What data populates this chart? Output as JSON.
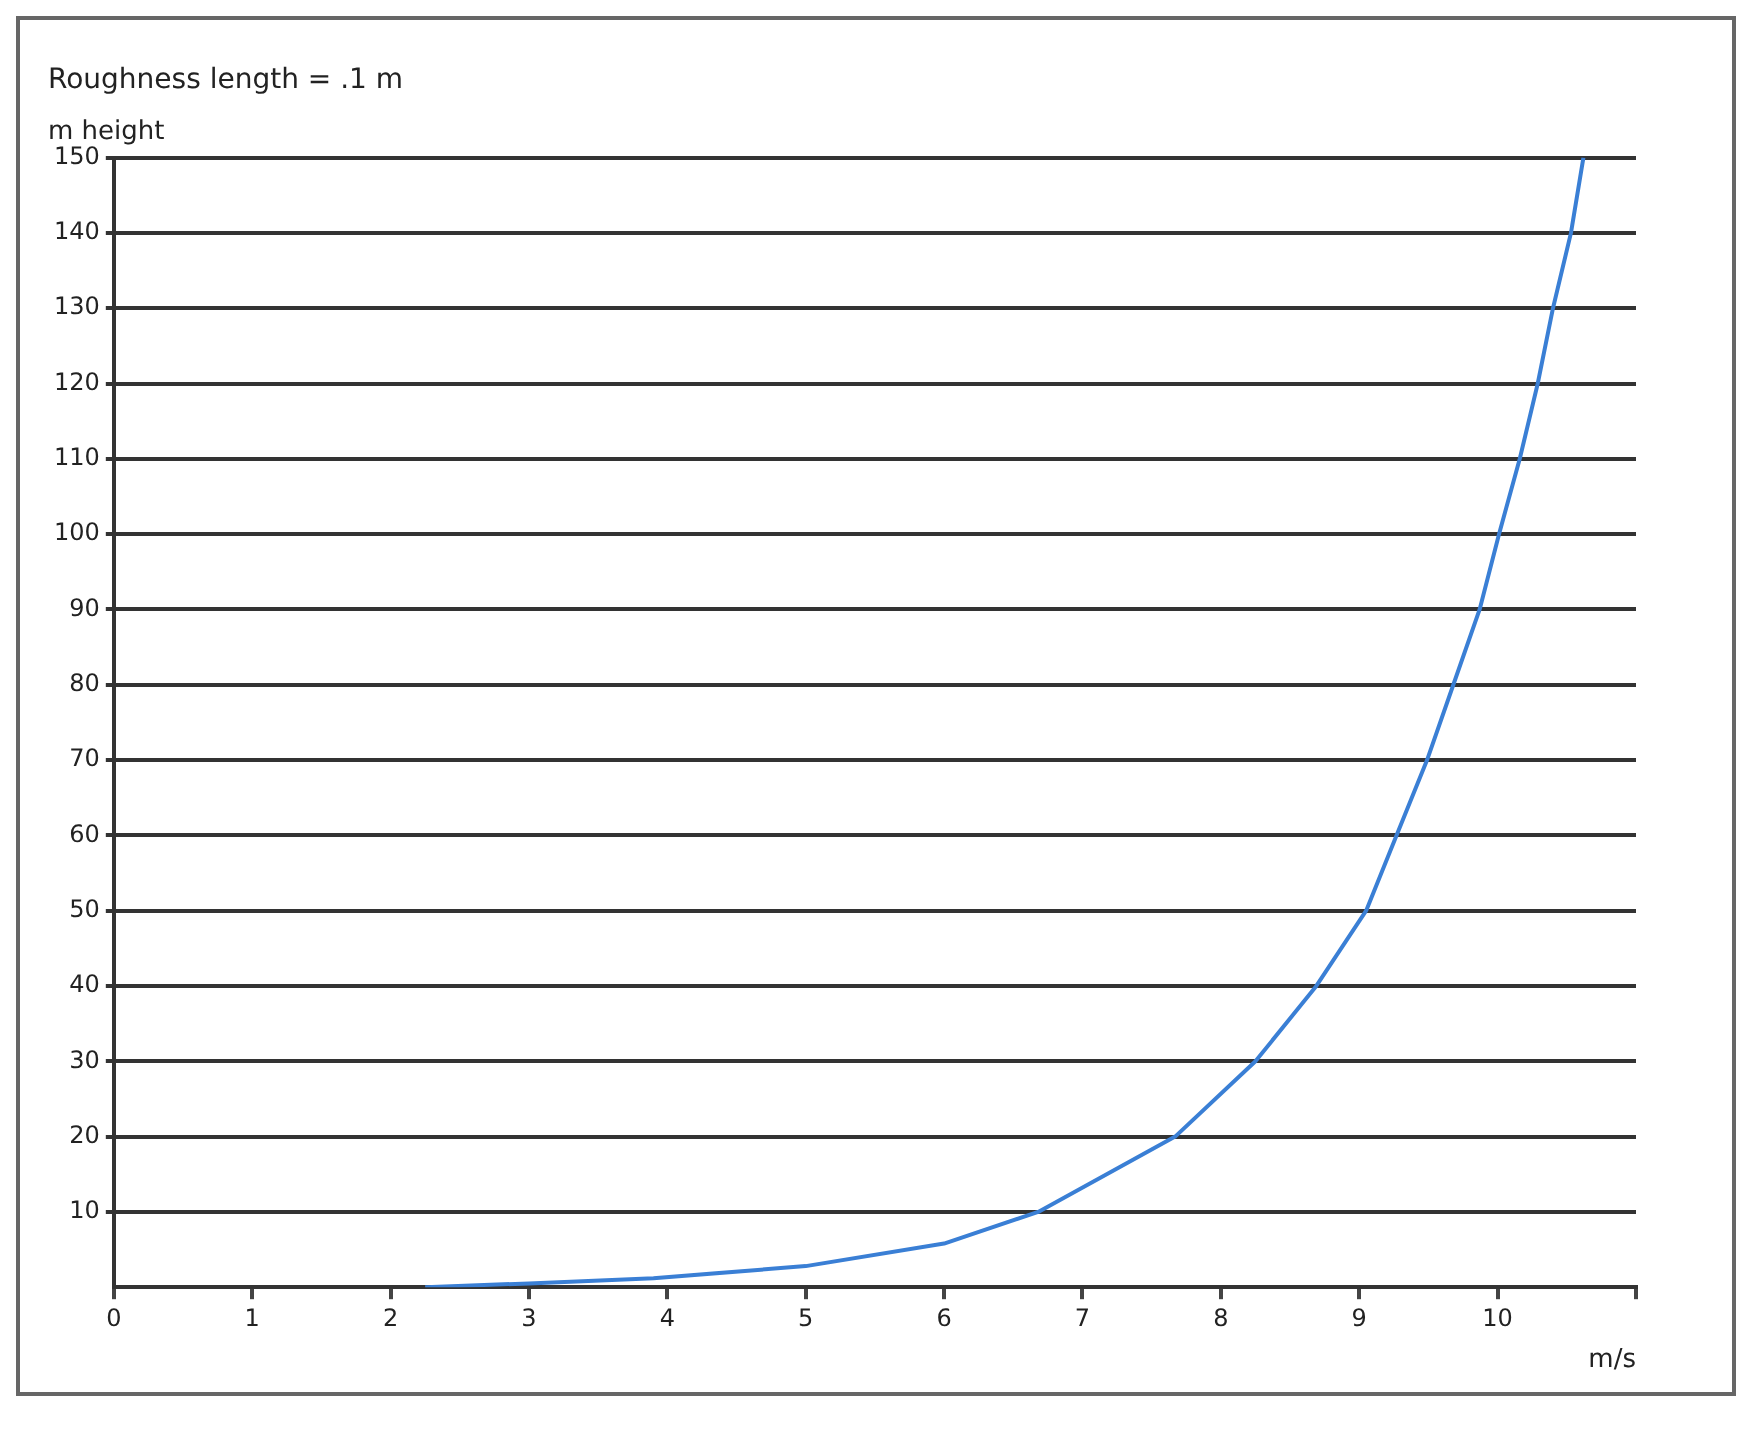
{
  "chart_data": {
    "type": "line",
    "title": "Roughness length = .1 m",
    "ylabel": "m height",
    "xlabel": "m/s",
    "x": [
      2.25,
      3,
      3.9,
      5,
      6,
      6.68,
      7.67,
      8.25,
      8.69,
      9.05,
      9.27,
      9.49,
      9.68,
      9.87,
      10.01,
      10.16,
      10.29,
      10.4,
      10.53,
      10.62
    ],
    "series": [
      {
        "color": "#3a7fd5",
        "values": [
          0,
          0.5,
          1.2,
          2.8,
          5.8,
          10,
          20,
          30,
          40,
          50,
          60,
          70,
          80,
          90,
          100,
          110,
          120,
          130,
          140,
          150
        ]
      }
    ],
    "xlim": [
      0,
      11
    ],
    "xticks": [
      0,
      1,
      2,
      3,
      4,
      5,
      6,
      7,
      8,
      9,
      10,
      {
        "value": 11,
        "label": null
      }
    ],
    "ylim": [
      0,
      150
    ],
    "yticks": [
      10,
      20,
      30,
      40,
      50,
      60,
      70,
      80,
      90,
      100,
      110,
      120,
      130,
      140,
      150
    ],
    "grid": "y",
    "legend": false,
    "marker": "none",
    "line_style": "solid"
  }
}
